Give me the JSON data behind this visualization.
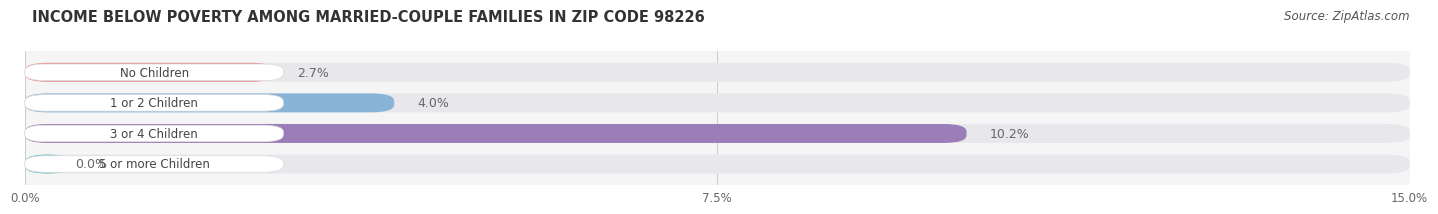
{
  "title": "INCOME BELOW POVERTY AMONG MARRIED-COUPLE FAMILIES IN ZIP CODE 98226",
  "source": "Source: ZipAtlas.com",
  "categories": [
    "No Children",
    "1 or 2 Children",
    "3 or 4 Children",
    "5 or more Children"
  ],
  "values": [
    2.7,
    4.0,
    10.2,
    0.0
  ],
  "bar_colors": [
    "#E8908E",
    "#88B4D8",
    "#9B7DB8",
    "#6ABEBE"
  ],
  "bar_bg_color": "#E8E8EC",
  "xlim": [
    0,
    15.0
  ],
  "xticks": [
    0.0,
    7.5,
    15.0
  ],
  "xtick_labels": [
    "0.0%",
    "7.5%",
    "15.0%"
  ],
  "title_fontsize": 10.5,
  "source_fontsize": 8.5,
  "bar_label_fontsize": 9,
  "category_fontsize": 8.5,
  "bar_height": 0.62,
  "background_color": "#FFFFFF",
  "plot_bg_color": "#F5F5F5",
  "text_label_color": "#666666",
  "category_text_color": "#444444",
  "grid_color": "#CCCCCC"
}
